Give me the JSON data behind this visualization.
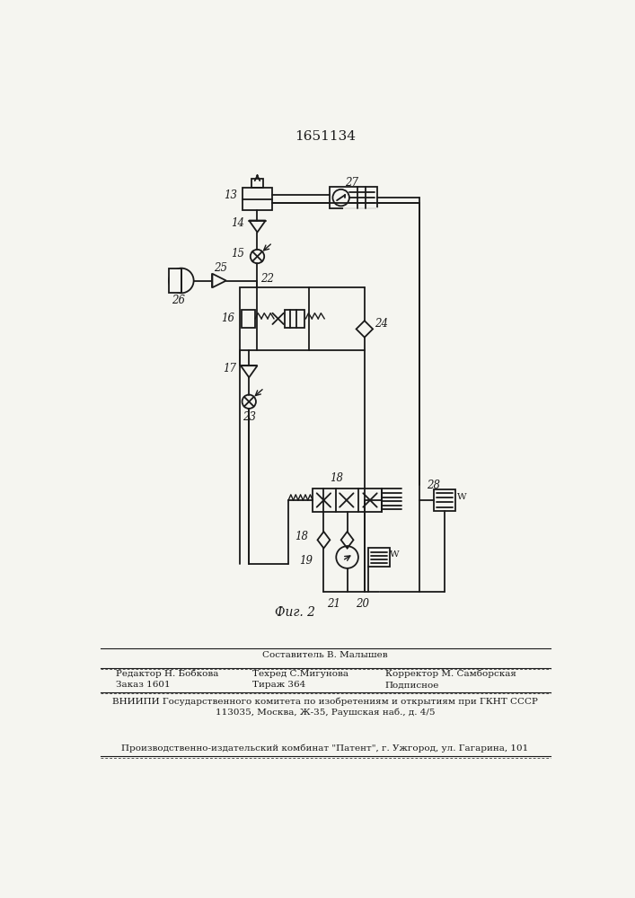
{
  "title": "1651134",
  "fig_label": "Фиг. 2",
  "bg_color": "#f5f5f0",
  "line_color": "#1a1a1a",
  "sestavitel": "Составитель В. Малышев"
}
